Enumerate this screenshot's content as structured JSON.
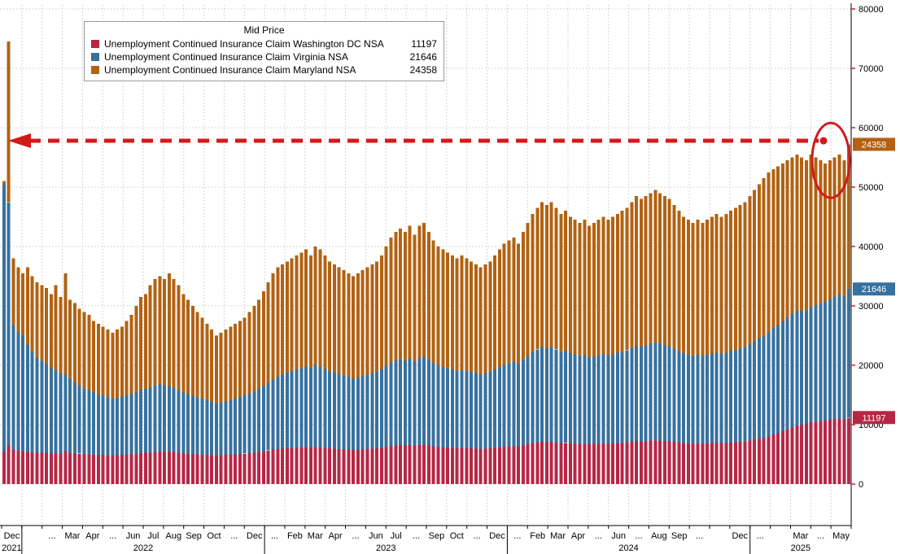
{
  "legend": {
    "title": "Mid Price",
    "items": [
      {
        "key": "dc",
        "label": "Unemployment Continued Insurance Claim Washington DC NSA",
        "value": "11197",
        "color": "#b62745"
      },
      {
        "key": "va",
        "label": "Unemployment Continued Insurance Claim Virginia NSA",
        "value": "21646",
        "color": "#36719f"
      },
      {
        "key": "md",
        "label": "Unemployment Continued Insurance Claim Maryland NSA",
        "value": "24358",
        "color": "#b26212"
      }
    ]
  },
  "colors": {
    "grid": "#c9c9c9",
    "axis": "#000000",
    "tick": "#cc2222",
    "arrow": "#d31a1a",
    "badge_text": "#ffffff"
  },
  "chart_data": {
    "type": "bar",
    "stacked": true,
    "frequency": "weekly",
    "x_start": "Dec 2021",
    "x_end": "May 2025",
    "ylim": [
      0,
      80000
    ],
    "y_ticks": [
      0,
      10000,
      20000,
      30000,
      40000,
      50000,
      60000,
      70000,
      80000
    ],
    "grid": true,
    "legend_position": "top-left",
    "series": [
      {
        "key": "dc",
        "name": "Unemployment Continued Insurance Claim Washington DC NSA",
        "color": "#b62745",
        "last_value": 11197,
        "values": [
          5500,
          6500,
          5800,
          5600,
          5500,
          5400,
          5350,
          5300,
          5250,
          5200,
          5150,
          5200,
          5150,
          5600,
          5200,
          5150,
          5100,
          5050,
          5000,
          4950,
          4900,
          4900,
          4850,
          4800,
          4850,
          4900,
          4950,
          5000,
          5100,
          5200,
          5250,
          5300,
          5400,
          5450,
          5400,
          5500,
          5400,
          5300,
          5200,
          5100,
          5050,
          5000,
          4950,
          4900,
          4850,
          4800,
          4850,
          4900,
          4950,
          5000,
          5050,
          5100,
          5200,
          5300,
          5400,
          5500,
          5650,
          5800,
          5900,
          5950,
          6000,
          6050,
          6100,
          6150,
          6200,
          6100,
          6250,
          6200,
          6100,
          6000,
          5950,
          5900,
          5850,
          5800,
          5750,
          5800,
          5850,
          5900,
          5950,
          6000,
          6100,
          6250,
          6400,
          6500,
          6550,
          6500,
          6600,
          6450,
          6600,
          6650,
          6500,
          6350,
          6250,
          6200,
          6150,
          6100,
          6050,
          6100,
          6050,
          6000,
          5950,
          5900,
          5950,
          6000,
          6100,
          6200,
          6300,
          6350,
          6400,
          6300,
          6500,
          6700,
          6900,
          7000,
          7100,
          7050,
          7100,
          7000,
          6900,
          6950,
          6850,
          6800,
          6750,
          6800,
          6700,
          6750,
          6800,
          6850,
          6800,
          6850,
          6900,
          6950,
          7000,
          7100,
          7200,
          7150,
          7200,
          7300,
          7350,
          7300,
          7250,
          7200,
          7100,
          7000,
          6900,
          6850,
          6800,
          6850,
          6800,
          6850,
          6900,
          6950,
          6900,
          6950,
          7000,
          7050,
          7100,
          7150,
          7300,
          7450,
          7600,
          7750,
          8000,
          8300,
          8600,
          8900,
          9200,
          9500,
          9800,
          10000,
          10200,
          10400,
          10500,
          10600,
          10700,
          10800,
          10900,
          11000,
          10900,
          11197
        ]
      },
      {
        "key": "va",
        "name": "Unemployment Continued Insurance Claim Virginia NSA",
        "color": "#36719f",
        "last_value": 21646,
        "values": [
          45000,
          41000,
          21000,
          20000,
          19500,
          18000,
          17000,
          16000,
          15500,
          15000,
          14500,
          14000,
          13500,
          13000,
          12500,
          12000,
          11500,
          11000,
          10800,
          10500,
          10200,
          10000,
          9800,
          9600,
          9700,
          9800,
          10000,
          10200,
          10400,
          10600,
          10800,
          11000,
          11200,
          11400,
          11200,
          11000,
          10800,
          10500,
          10200,
          10000,
          9800,
          9600,
          9400,
          9200,
          9000,
          8800,
          8900,
          9000,
          9200,
          9400,
          9600,
          9800,
          10000,
          10300,
          10600,
          11000,
          11400,
          11800,
          12200,
          12500,
          12800,
          13000,
          13200,
          13400,
          13600,
          13400,
          13800,
          13600,
          13300,
          13000,
          12800,
          12600,
          12400,
          12200,
          12000,
          12100,
          12300,
          12500,
          12700,
          12900,
          13200,
          13600,
          14000,
          14300,
          14500,
          14300,
          14600,
          14200,
          14600,
          14800,
          14400,
          14000,
          13700,
          13500,
          13300,
          13200,
          13000,
          13100,
          13000,
          12900,
          12700,
          12600,
          12700,
          12900,
          13200,
          13500,
          13800,
          14000,
          14200,
          13900,
          14400,
          14900,
          15400,
          15700,
          16000,
          15800,
          16000,
          15700,
          15400,
          15500,
          15200,
          15000,
          14800,
          14900,
          14600,
          14700,
          14900,
          15000,
          14900,
          15000,
          15200,
          15300,
          15500,
          15800,
          16100,
          16000,
          16100,
          16300,
          16500,
          16300,
          16100,
          16000,
          15700,
          15400,
          15100,
          14900,
          14800,
          14900,
          14800,
          14900,
          15100,
          15200,
          15100,
          15200,
          15400,
          15500,
          15700,
          15900,
          16200,
          16500,
          16900,
          17200,
          17600,
          17900,
          18200,
          18500,
          18800,
          19100,
          19400,
          19200,
          19000,
          19400,
          19600,
          19800,
          20000,
          20300,
          20600,
          20900,
          20700,
          21646
        ]
      },
      {
        "key": "md",
        "name": "Unemployment Continued Insurance Claim Maryland NSA",
        "color": "#b26212",
        "last_value": 24358,
        "values": [
          500,
          27000,
          11200,
          10900,
          10500,
          13100,
          12650,
          12700,
          12750,
          12800,
          12350,
          14300,
          12850,
          16900,
          13300,
          13350,
          12900,
          12950,
          12700,
          12050,
          11900,
          11600,
          11350,
          11100,
          11450,
          11800,
          12550,
          13300,
          14500,
          15700,
          15950,
          17200,
          17900,
          18150,
          17900,
          19000,
          18300,
          17700,
          16600,
          15900,
          15150,
          14400,
          13650,
          12900,
          12150,
          11400,
          11750,
          12100,
          12350,
          12600,
          12850,
          13100,
          13800,
          14400,
          15000,
          16000,
          16950,
          17900,
          18400,
          18550,
          18700,
          18950,
          19200,
          19450,
          19700,
          19000,
          19950,
          19700,
          19100,
          18500,
          18250,
          18000,
          17750,
          17500,
          17250,
          17600,
          17850,
          18100,
          18350,
          18600,
          19200,
          20150,
          21100,
          21700,
          21950,
          21700,
          22300,
          21350,
          22300,
          22550,
          21600,
          20650,
          20050,
          19800,
          19550,
          19200,
          18950,
          19300,
          18950,
          18600,
          18350,
          18000,
          18350,
          18600,
          19200,
          19800,
          20400,
          20650,
          20900,
          20300,
          21600,
          22400,
          23200,
          23800,
          24400,
          24150,
          24400,
          23800,
          23200,
          23550,
          22950,
          22700,
          22450,
          22800,
          22200,
          22550,
          22800,
          23150,
          22800,
          23150,
          23400,
          23750,
          24000,
          24600,
          25200,
          24850,
          25200,
          25400,
          25650,
          25400,
          25150,
          24800,
          24200,
          23600,
          23000,
          22750,
          22400,
          22750,
          22400,
          22750,
          23000,
          23350,
          23000,
          23350,
          23600,
          23950,
          24200,
          24450,
          25000,
          25550,
          26000,
          26550,
          26900,
          26800,
          26700,
          26600,
          26500,
          26400,
          26300,
          25800,
          25300,
          25700,
          24900,
          24100,
          23300,
          23400,
          23500,
          23600,
          22900,
          24358
        ]
      }
    ],
    "right_badges": [
      {
        "text": "24358",
        "color": "#b26212",
        "level": 57201
      },
      {
        "text": "21646",
        "color": "#36719f",
        "level": 32843
      },
      {
        "text": "11197",
        "color": "#b62745",
        "level": 11197
      }
    ],
    "annotations": {
      "dashed_arrow_level": 57800,
      "arrow_direction": "left",
      "ellipse_center_level": 54500
    },
    "x_axis": {
      "month_count": 42,
      "month_labels": [
        {
          "m": 0,
          "label": "Dec"
        },
        {
          "m": 2,
          "label": "..."
        },
        {
          "m": 3,
          "label": "Mar"
        },
        {
          "m": 4,
          "label": "Apr"
        },
        {
          "m": 5,
          "label": "..."
        },
        {
          "m": 6,
          "label": "Jun"
        },
        {
          "m": 7,
          "label": "Jul"
        },
        {
          "m": 8,
          "label": "Aug"
        },
        {
          "m": 9,
          "label": "Sep"
        },
        {
          "m": 10,
          "label": "Oct"
        },
        {
          "m": 11,
          "label": "..."
        },
        {
          "m": 12,
          "label": "Dec"
        },
        {
          "m": 13,
          "label": "..."
        },
        {
          "m": 14,
          "label": "Feb"
        },
        {
          "m": 15,
          "label": "Mar"
        },
        {
          "m": 16,
          "label": "Apr"
        },
        {
          "m": 17,
          "label": "..."
        },
        {
          "m": 18,
          "label": "Jun"
        },
        {
          "m": 19,
          "label": "Jul"
        },
        {
          "m": 20,
          "label": "..."
        },
        {
          "m": 21,
          "label": "Sep"
        },
        {
          "m": 22,
          "label": "Oct"
        },
        {
          "m": 23,
          "label": "..."
        },
        {
          "m": 24,
          "label": "Dec"
        },
        {
          "m": 25,
          "label": "..."
        },
        {
          "m": 26,
          "label": "Feb"
        },
        {
          "m": 27,
          "label": "Mar"
        },
        {
          "m": 28,
          "label": "Apr"
        },
        {
          "m": 29,
          "label": "..."
        },
        {
          "m": 30,
          "label": "Jun"
        },
        {
          "m": 31,
          "label": "..."
        },
        {
          "m": 32,
          "label": "Aug"
        },
        {
          "m": 33,
          "label": "Sep"
        },
        {
          "m": 34,
          "label": "..."
        },
        {
          "m": 36,
          "label": "Dec"
        },
        {
          "m": 37,
          "label": "..."
        },
        {
          "m": 39,
          "label": "Mar"
        },
        {
          "m": 40,
          "label": "..."
        },
        {
          "m": 41,
          "label": "May"
        }
      ],
      "year_labels": [
        {
          "label": "2021",
          "m": 0.5
        },
        {
          "label": "2022",
          "m": 7
        },
        {
          "label": "2023",
          "m": 19
        },
        {
          "label": "2024",
          "m": 31
        },
        {
          "label": "2025",
          "m": 39.5
        }
      ],
      "year_separators": [
        1,
        13,
        25,
        37
      ]
    }
  }
}
